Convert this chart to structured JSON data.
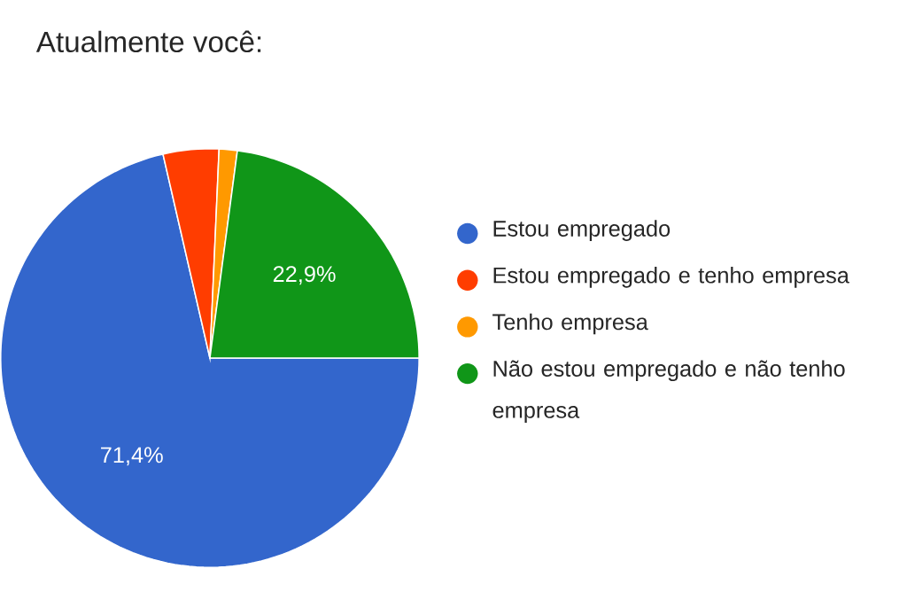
{
  "chart_data": {
    "type": "pie",
    "title": "Atualmente você:",
    "categories": [
      "Estou empregado",
      "Estou empregado e tenho empresa",
      "Tenho empresa",
      "Não estou empregado e não tenho empresa"
    ],
    "values": [
      71.4,
      4.3,
      1.4,
      22.9
    ],
    "colors": [
      "#3366cc",
      "#ff3d00",
      "#ff9900",
      "#109618"
    ],
    "value_labels": [
      "71,4%",
      null,
      null,
      "22,9%"
    ],
    "legend": "right"
  }
}
